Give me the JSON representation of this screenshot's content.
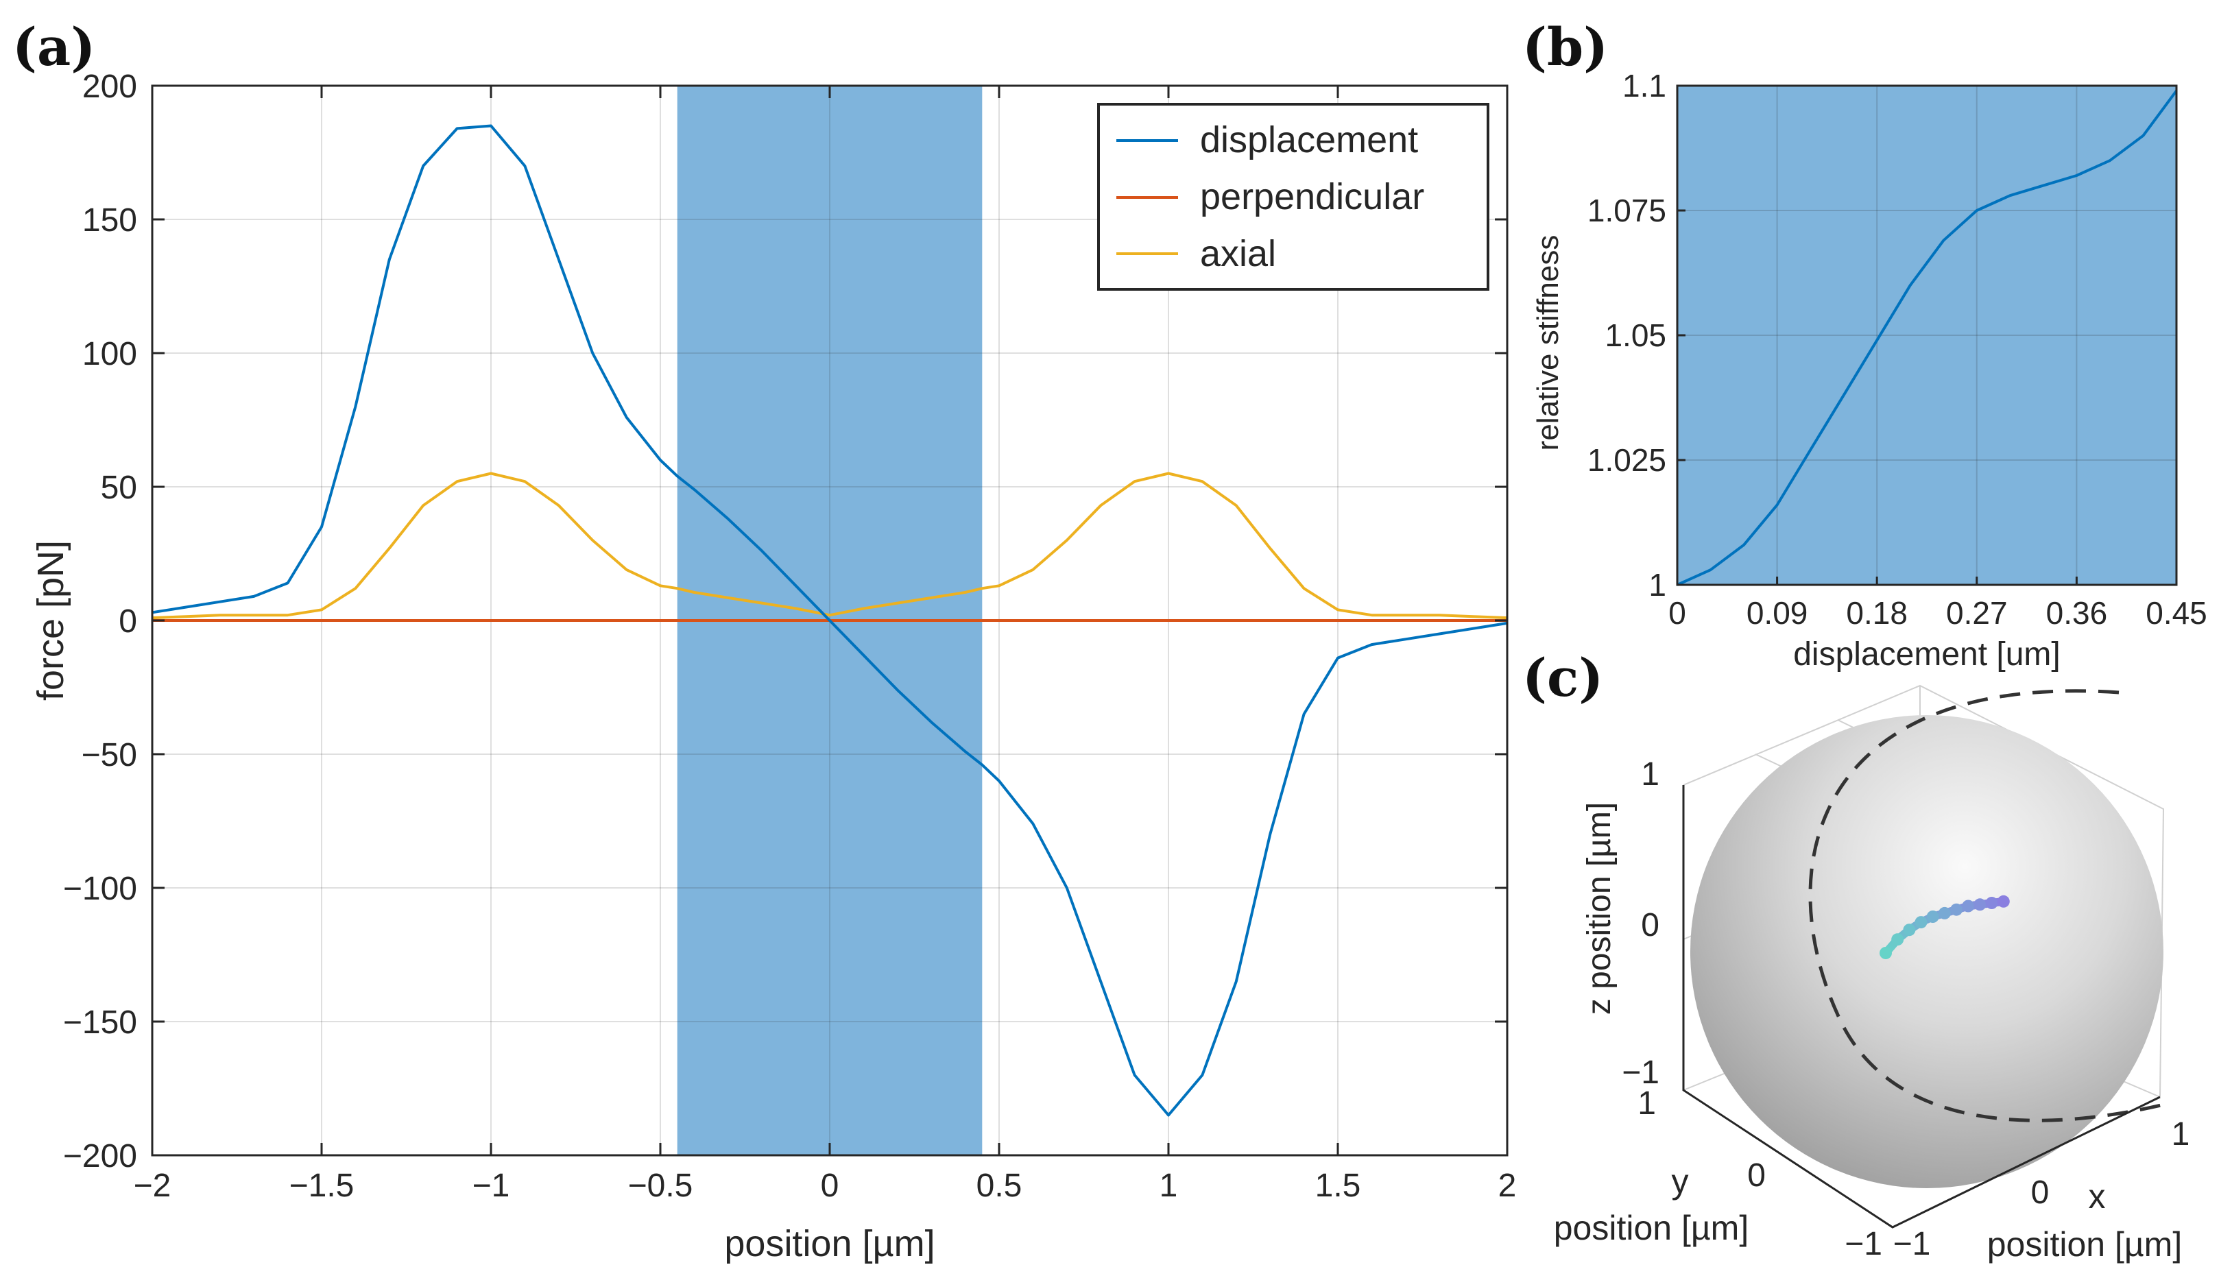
{
  "panel_labels": [
    "(a)",
    "(b)",
    "(c)"
  ],
  "chart_data": [
    {
      "panel": "(a)",
      "type": "line",
      "title": "",
      "xlabel": "position [µm]",
      "ylabel": "force [pN]",
      "xlim": [
        -2,
        2
      ],
      "ylim": [
        -200,
        200
      ],
      "xticks": [
        "−2",
        "−1.5",
        "−1",
        "−0.5",
        "0",
        "0.5",
        "1",
        "1.5",
        "2"
      ],
      "yticks": [
        "200",
        "150",
        "100",
        "50",
        "0",
        "−50",
        "−100",
        "−150",
        "−200"
      ],
      "grid": true,
      "legend_position": "top-right",
      "shaded_region": {
        "x0": -0.45,
        "x1": 0.45,
        "color": "#7fb4dc"
      },
      "x": [
        -2.0,
        -1.9,
        -1.8,
        -1.7,
        -1.6,
        -1.5,
        -1.4,
        -1.3,
        -1.2,
        -1.1,
        -1.0,
        -0.9,
        -0.8,
        -0.7,
        -0.6,
        -0.5,
        -0.45,
        -0.4,
        -0.3,
        -0.2,
        -0.1,
        0.0,
        0.1,
        0.2,
        0.3,
        0.4,
        0.45,
        0.5,
        0.6,
        0.7,
        0.8,
        0.9,
        1.0,
        1.1,
        1.2,
        1.3,
        1.4,
        1.5,
        1.6,
        1.7,
        1.8,
        1.9,
        2.0
      ],
      "series": [
        {
          "name": "displacement",
          "color": "#0072bd",
          "values": [
            3,
            5,
            7,
            9,
            14,
            35,
            80,
            135,
            170,
            184,
            185,
            170,
            135,
            100,
            76,
            60,
            54,
            49,
            38,
            26,
            13,
            0,
            -13,
            -26,
            -38,
            -49,
            -54,
            -60,
            -76,
            -100,
            -135,
            -170,
            -185,
            -170,
            -135,
            -80,
            -35,
            -14,
            -9,
            -7,
            -5,
            -3,
            -1
          ]
        },
        {
          "name": "perpendicular",
          "color": "#d95319",
          "values": [
            0,
            0,
            0,
            0,
            0,
            0,
            0,
            0,
            0,
            0,
            0,
            0,
            0,
            0,
            0,
            0,
            0,
            0,
            0,
            0,
            0,
            0,
            0,
            0,
            0,
            0,
            0,
            0,
            0,
            0,
            0,
            0,
            0,
            0,
            0,
            0,
            0,
            0,
            0,
            0,
            0,
            0,
            0
          ]
        },
        {
          "name": "axial",
          "color": "#edb120",
          "values": [
            1,
            1.5,
            2,
            2,
            2,
            4,
            12,
            27,
            43,
            52,
            55,
            52,
            43,
            30,
            19,
            13,
            12,
            10.5,
            8.5,
            6.5,
            4.5,
            2,
            4.5,
            6.5,
            8.5,
            10.5,
            12,
            13,
            19,
            30,
            43,
            52,
            55,
            52,
            43,
            27,
            12,
            4,
            2,
            2,
            2,
            1.5,
            1
          ]
        }
      ]
    },
    {
      "panel": "(b)",
      "type": "line",
      "title": "",
      "xlabel": "displacement [um]",
      "ylabel": "relative stiffness",
      "xlim": [
        0,
        0.45
      ],
      "ylim": [
        1,
        1.1
      ],
      "xticks": [
        "0",
        "0.09",
        "0.18",
        "0.27",
        "0.36",
        "0.45"
      ],
      "yticks": [
        "1",
        "1.025",
        "1.05",
        "1.075",
        "1.1"
      ],
      "grid": true,
      "background_color": "#7fb4dc",
      "x": [
        0,
        0.03,
        0.06,
        0.09,
        0.12,
        0.15,
        0.18,
        0.21,
        0.24,
        0.27,
        0.3,
        0.33,
        0.36,
        0.39,
        0.42,
        0.45
      ],
      "series": [
        {
          "color": "#0072bd",
          "values": [
            1.0,
            1.003,
            1.008,
            1.016,
            1.027,
            1.038,
            1.049,
            1.06,
            1.069,
            1.075,
            1.078,
            1.08,
            1.082,
            1.085,
            1.09,
            1.099
          ]
        }
      ]
    },
    {
      "panel": "(c)",
      "type": "scatter",
      "title": "",
      "xlabel_top": "x",
      "xlabel_bottom": "position [µm]",
      "ylabel_top": "y",
      "ylabel_bottom": "position [µm]",
      "zlabel": "z position [µm]",
      "xticks": [
        "−1",
        "0",
        "1"
      ],
      "yticks": [
        "−1",
        "0",
        "1"
      ],
      "zticks": [
        "−1",
        "0",
        "1"
      ],
      "sphere_color": "#c8c8c8",
      "trajectory": {
        "color_start": "#66d3c8",
        "color_end": "#8a7fe0",
        "x": [
          0.0,
          0.06,
          0.12,
          0.18,
          0.24,
          0.3,
          0.36,
          0.42,
          0.48,
          0.54,
          0.6
        ],
        "y": [
          0.0,
          0.01,
          0.02,
          0.03,
          0.04,
          0.05,
          0.06,
          0.07,
          0.08,
          0.09,
          0.1
        ],
        "z": [
          0.0,
          0.07,
          0.12,
          0.16,
          0.19,
          0.21,
          0.23,
          0.25,
          0.26,
          0.27,
          0.28
        ]
      }
    }
  ]
}
